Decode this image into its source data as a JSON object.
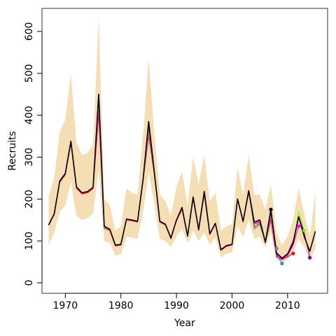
{
  "chart_data": {
    "type": "line",
    "title": "",
    "xlabel": "Year",
    "ylabel": "Recruits",
    "xlim": [
      1965.8,
      2017.2
    ],
    "ylim": [
      -25,
      655
    ],
    "x_ticks": [
      1970,
      1980,
      1990,
      2000,
      2010
    ],
    "y_ticks": [
      0,
      100,
      200,
      300,
      400,
      500,
      600
    ],
    "grid": false,
    "legend": "none",
    "band": {
      "color": "#f5deb3",
      "x": [
        1967,
        1968,
        1969,
        1970,
        1971,
        1972,
        1973,
        1974,
        1975,
        1976,
        1977,
        1978,
        1979,
        1980,
        1981,
        1982,
        1983,
        1984,
        1985,
        1986,
        1987,
        1988,
        1989,
        1990,
        1991,
        1992,
        1993,
        1994,
        1995,
        1996,
        1997,
        1998,
        1999,
        2000,
        2001,
        2002,
        2003,
        2004,
        2005,
        2006,
        2007,
        2008,
        2009,
        2010,
        2011,
        2012,
        2013,
        2014,
        2015
      ],
      "lower": [
        90,
        120,
        170,
        185,
        240,
        160,
        150,
        155,
        165,
        270,
        100,
        95,
        65,
        68,
        110,
        108,
        105,
        170,
        265,
        190,
        105,
        100,
        85,
        110,
        128,
        95,
        125,
        100,
        120,
        90,
        108,
        60,
        70,
        72,
        135,
        110,
        150,
        105,
        110,
        85,
        120,
        55,
        48,
        55,
        72,
        105,
        85,
        55,
        82
      ],
      "upper": [
        205,
        250,
        360,
        390,
        500,
        335,
        305,
        310,
        330,
        635,
        200,
        185,
        125,
        135,
        225,
        215,
        210,
        355,
        535,
        360,
        210,
        195,
        160,
        230,
        265,
        185,
        300,
        235,
        305,
        195,
        215,
        125,
        135,
        140,
        275,
        210,
        305,
        210,
        210,
        175,
        235,
        120,
        90,
        110,
        150,
        225,
        165,
        110,
        215
      ]
    },
    "series": [
      {
        "color": "#ff0000",
        "x": [
          1967,
          1968,
          1969,
          1970,
          1971,
          1972,
          1973,
          1974,
          1975,
          1976,
          1977,
          1978,
          1979,
          1980,
          1981,
          1982,
          1983,
          1984,
          1985,
          1986,
          1987,
          1988,
          1989,
          1990,
          1991,
          1992,
          1993,
          1994,
          1995,
          1996,
          1997,
          1998,
          1999,
          2000,
          2001,
          2002,
          2003,
          2004,
          2005,
          2006,
          2007,
          2008,
          2009,
          2010,
          2011
        ],
        "y": [
          137,
          163,
          240,
          258,
          332,
          226,
          212,
          215,
          225,
          400,
          130,
          125,
          88,
          90,
          150,
          148,
          145,
          245,
          350,
          260,
          145,
          138,
          105,
          148,
          175,
          110,
          200,
          125,
          210,
          115,
          140,
          77,
          87,
          90,
          198,
          145,
          215,
          140,
          145,
          95,
          150,
          62,
          55,
          62,
          70
        ]
      },
      {
        "color": "#1e90ff",
        "x": [
          1967,
          1968,
          1969,
          1970,
          1971,
          1972,
          1973,
          1974,
          1975,
          1976,
          1977,
          1978,
          1979,
          1980,
          1981,
          1982,
          1983,
          1984,
          1985,
          1986,
          1987,
          1988,
          1989,
          1990,
          1991,
          1992,
          1993,
          1994,
          1995,
          1996,
          1997,
          1998,
          1999,
          2000,
          2001,
          2002,
          2003,
          2004,
          2005,
          2006,
          2007,
          2008,
          2009
        ],
        "y": [
          138,
          165,
          243,
          262,
          338,
          229,
          215,
          218,
          228,
          420,
          133,
          128,
          90,
          92,
          152,
          150,
          147,
          248,
          360,
          265,
          147,
          140,
          107,
          150,
          178,
          112,
          203,
          128,
          220,
          118,
          142,
          79,
          89,
          92,
          200,
          147,
          218,
          145,
          148,
          97,
          160,
          68,
          46
        ]
      },
      {
        "color": "#ff00ff",
        "x": [
          1967,
          1968,
          1969,
          1970,
          1971,
          1972,
          1973,
          1974,
          1975,
          1976,
          1977,
          1978,
          1979,
          1980,
          1981,
          1982,
          1983,
          1984,
          1985,
          1986,
          1987,
          1988,
          1989,
          1990,
          1991,
          1992,
          1993,
          1994,
          1995,
          1996,
          1997,
          1998,
          1999,
          2000,
          2001,
          2002,
          2003,
          2004,
          2005,
          2006,
          2007,
          2008,
          2009,
          2010,
          2011,
          2012
        ],
        "y": [
          137,
          164,
          242,
          260,
          336,
          228,
          214,
          217,
          227,
          410,
          132,
          127,
          89,
          91,
          151,
          149,
          146,
          247,
          355,
          262,
          146,
          139,
          106,
          149,
          176,
          111,
          201,
          126,
          215,
          116,
          141,
          78,
          88,
          91,
          199,
          146,
          216,
          142,
          146,
          96,
          155,
          64,
          56,
          64,
          90,
          135
        ]
      },
      {
        "color": "#7fff00",
        "x": [
          1967,
          1968,
          1969,
          1970,
          1971,
          1972,
          1973,
          1974,
          1975,
          1976,
          1977,
          1978,
          1979,
          1980,
          1981,
          1982,
          1983,
          1984,
          1985,
          1986,
          1987,
          1988,
          1989,
          1990,
          1991,
          1992,
          1993,
          1994,
          1995,
          1996,
          1997,
          1998,
          1999,
          2000,
          2001,
          2002,
          2003,
          2004,
          2005,
          2006,
          2007,
          2008,
          2009,
          2010,
          2011,
          2012,
          2013
        ],
        "y": [
          138,
          165,
          243,
          261,
          337,
          229,
          215,
          218,
          228,
          430,
          133,
          128,
          90,
          92,
          152,
          150,
          147,
          248,
          365,
          264,
          147,
          140,
          107,
          150,
          178,
          112,
          203,
          127,
          212,
          117,
          142,
          79,
          89,
          92,
          200,
          147,
          218,
          135,
          140,
          97,
          165,
          70,
          58,
          68,
          95,
          170,
          125
        ]
      },
      {
        "color": "#8b008b",
        "x": [
          1967,
          1968,
          1969,
          1970,
          1971,
          1972,
          1973,
          1974,
          1975,
          1976,
          1977,
          1978,
          1979,
          1980,
          1981,
          1982,
          1983,
          1984,
          1985,
          1986,
          1987,
          1988,
          1989,
          1990,
          1991,
          1992,
          1993,
          1994,
          1995,
          1996,
          1997,
          1998,
          1999,
          2000,
          2001,
          2002,
          2003,
          2004,
          2005,
          2006,
          2007,
          2008,
          2009,
          2010,
          2011,
          2012,
          2013,
          2014
        ],
        "y": [
          138,
          165,
          243,
          261,
          337,
          229,
          215,
          218,
          228,
          440,
          134,
          128,
          90,
          92,
          152,
          150,
          147,
          248,
          372,
          265,
          147,
          140,
          107,
          150,
          178,
          112,
          203,
          127,
          213,
          117,
          142,
          79,
          89,
          92,
          200,
          147,
          218,
          133,
          142,
          97,
          168,
          72,
          60,
          70,
          100,
          158,
          120,
          60
        ]
      },
      {
        "color": "#808080",
        "x": [
          1967,
          1968,
          1969,
          1970,
          1971,
          1972,
          1973,
          1974,
          1975,
          1976,
          1977,
          1978,
          1979,
          1980,
          1981,
          1982,
          1983,
          1984,
          1985,
          1986,
          1987,
          1988,
          1989,
          1990,
          1991,
          1992,
          1993,
          1994,
          1995,
          1996,
          1997,
          1998,
          1999,
          2000,
          2001,
          2002,
          2003,
          2004,
          2005,
          2006,
          2007,
          2008
        ],
        "y": [
          138,
          165,
          243,
          261,
          337,
          229,
          215,
          218,
          228,
          445,
          134,
          128,
          90,
          92,
          152,
          150,
          147,
          248,
          378,
          266,
          147,
          140,
          107,
          150,
          178,
          112,
          203,
          127,
          214,
          117,
          142,
          79,
          89,
          92,
          200,
          147,
          218,
          128,
          138,
          97,
          158,
          82
        ]
      },
      {
        "color": "#000000",
        "x": [
          1967,
          1968,
          1969,
          1970,
          1971,
          1972,
          1973,
          1974,
          1975,
          1976,
          1977,
          1978,
          1979,
          1980,
          1981,
          1982,
          1983,
          1984,
          1985,
          1986,
          1987,
          1988,
          1989,
          1990,
          1991,
          1992,
          1993,
          1994,
          1995,
          1996,
          1997,
          1998,
          1999,
          2000,
          2001,
          2002,
          2003,
          2004,
          2005,
          2006,
          2007,
          2008,
          2009,
          2010,
          2011,
          2012,
          2013,
          2014,
          2015
        ],
        "y": [
          138,
          165,
          243,
          261,
          338,
          229,
          215,
          218,
          228,
          450,
          135,
          128,
          90,
          92,
          152,
          150,
          147,
          248,
          385,
          267,
          147,
          140,
          107,
          150,
          180,
          112,
          205,
          127,
          218,
          117,
          142,
          79,
          89,
          92,
          200,
          147,
          220,
          145,
          150,
          97,
          175,
          70,
          58,
          68,
          95,
          158,
          110,
          75,
          123
        ]
      }
    ]
  }
}
